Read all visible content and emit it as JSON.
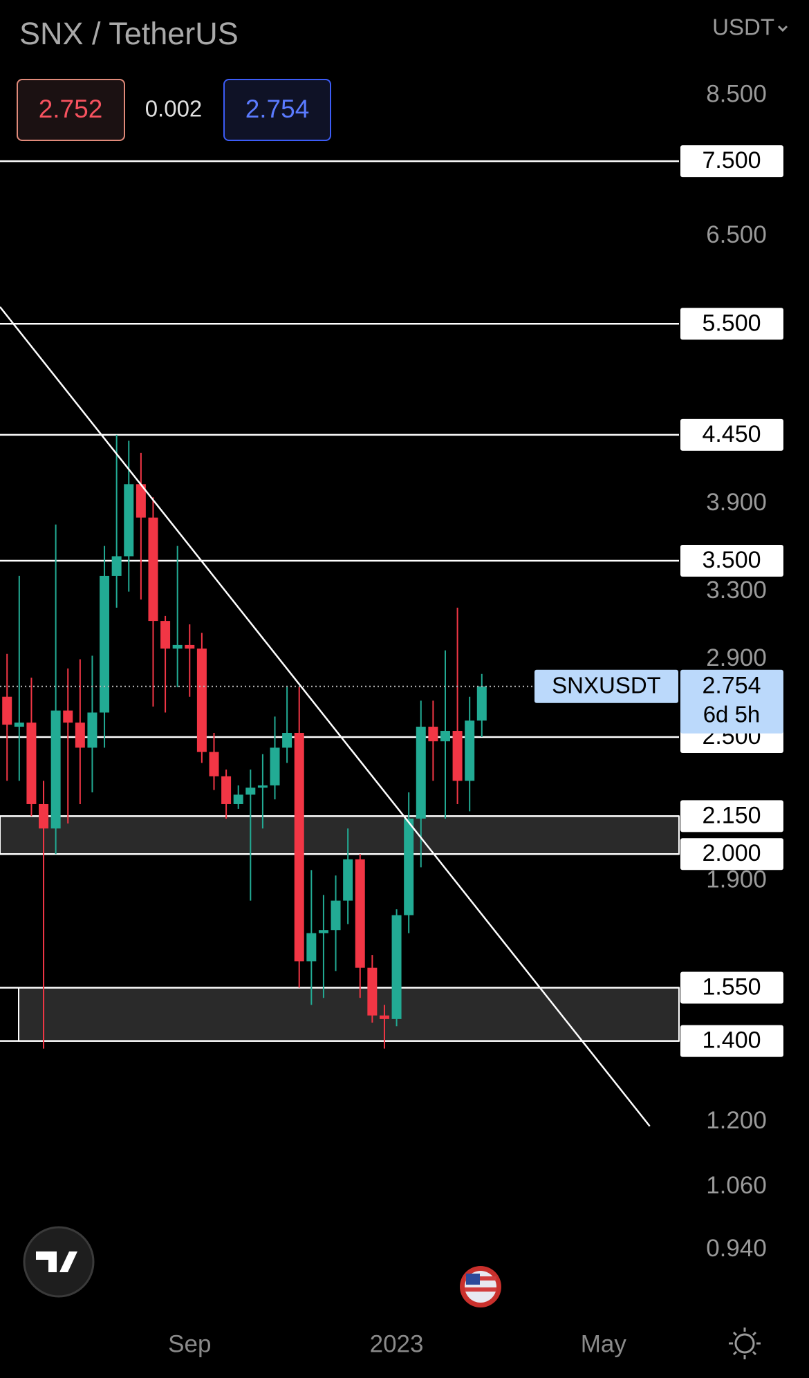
{
  "chart_data": {
    "type": "candlestick",
    "title": "SNX / TetherUS",
    "currency": "USDT",
    "quote": {
      "bid": {
        "value": 2.752,
        "label": "2.752"
      },
      "spread": 0.002,
      "ask": {
        "value": 2.754,
        "label": "2.754"
      }
    },
    "symbol": "SNXUSDT",
    "last_price": {
      "value": 2.754,
      "label": "2.754"
    },
    "countdown": "6d 5h",
    "log_scale": true,
    "up_color": "#22ab94",
    "down_color": "#f23645",
    "x": [
      0,
      1,
      2,
      3,
      4,
      5,
      6,
      7,
      8,
      9,
      10,
      11,
      12,
      13,
      14,
      15,
      16,
      17,
      18,
      19,
      20,
      21,
      22,
      23,
      24,
      25,
      26,
      27,
      28,
      29,
      30,
      31,
      32,
      33,
      34,
      35,
      36,
      37,
      38,
      39
    ],
    "open": [
      2.7,
      2.55,
      2.57,
      2.2,
      2.1,
      2.63,
      2.57,
      2.45,
      2.62,
      3.4,
      3.53,
      4.05,
      3.8,
      3.12,
      2.96,
      2.98,
      2.96,
      2.43,
      2.32,
      2.2,
      2.24,
      2.27,
      2.28,
      2.45,
      2.52,
      1.63,
      1.72,
      1.73,
      1.83,
      1.98,
      1.61,
      1.47,
      1.46,
      1.78,
      2.14,
      2.55,
      2.48,
      2.53,
      2.3,
      2.58
    ],
    "high": [
      2.93,
      3.4,
      2.8,
      2.3,
      3.75,
      2.85,
      2.9,
      2.92,
      3.6,
      4.45,
      4.4,
      4.3,
      3.95,
      3.15,
      3.6,
      3.1,
      3.05,
      2.52,
      2.35,
      2.28,
      2.35,
      2.42,
      2.6,
      2.75,
      2.75,
      1.94,
      1.85,
      1.92,
      2.1,
      2.0,
      1.65,
      1.5,
      1.8,
      2.25,
      2.68,
      2.68,
      2.95,
      3.2,
      2.7,
      2.82
    ],
    "low": [
      2.3,
      2.3,
      2.15,
      1.38,
      2.0,
      2.12,
      2.2,
      2.25,
      2.45,
      3.2,
      3.3,
      3.25,
      2.65,
      2.62,
      2.75,
      2.7,
      2.38,
      2.26,
      2.14,
      2.18,
      1.83,
      2.1,
      2.22,
      2.38,
      1.55,
      1.5,
      1.52,
      1.6,
      1.75,
      1.52,
      1.45,
      1.38,
      1.44,
      1.72,
      1.95,
      2.3,
      2.14,
      2.2,
      2.17,
      2.5
    ],
    "close": [
      2.56,
      2.57,
      2.2,
      2.1,
      2.63,
      2.57,
      2.45,
      2.62,
      3.4,
      3.53,
      4.05,
      3.8,
      3.12,
      2.96,
      2.98,
      2.96,
      2.43,
      2.32,
      2.2,
      2.24,
      2.27,
      2.28,
      2.45,
      2.52,
      1.63,
      1.72,
      1.73,
      1.83,
      1.98,
      1.61,
      1.47,
      1.46,
      1.78,
      2.14,
      2.55,
      2.48,
      2.53,
      2.3,
      2.58,
      2.754
    ],
    "xlim": [
      -0.58,
      55.2
    ],
    "xticks": [
      {
        "value": 15,
        "label": "Sep"
      },
      {
        "value": 32,
        "label": "2023"
      },
      {
        "value": 49,
        "label": "May"
      }
    ],
    "ylim": [
      0.817,
      10.2
    ],
    "yticks": [
      {
        "value": 8.5,
        "label": "8.500"
      },
      {
        "value": 6.5,
        "label": "6.500"
      },
      {
        "value": 3.9,
        "label": "3.900"
      },
      {
        "value": 3.3,
        "label": "3.300"
      },
      {
        "value": 2.9,
        "label": "2.900"
      },
      {
        "value": 1.9,
        "label": "1.900"
      },
      {
        "value": 1.2,
        "label": "1.200"
      },
      {
        "value": 1.06,
        "label": "1.060"
      },
      {
        "value": 0.94,
        "label": "0.940"
      }
    ],
    "levels": [
      {
        "value": 7.5,
        "label": "7.500"
      },
      {
        "value": 5.5,
        "label": "5.500"
      },
      {
        "value": 4.45,
        "label": "4.450"
      },
      {
        "value": 3.5,
        "label": "3.500"
      },
      {
        "value": 2.5,
        "label": "2.500"
      },
      {
        "value": 2.15,
        "label": "2.150"
      },
      {
        "value": 2.0,
        "label": "2.000"
      },
      {
        "value": 1.55,
        "label": "1.550"
      },
      {
        "value": 1.4,
        "label": "1.400"
      }
    ],
    "trendline": {
      "x": [
        -0.58,
        52.8
      ],
      "y": [
        5.68,
        1.19
      ]
    }
  }
}
